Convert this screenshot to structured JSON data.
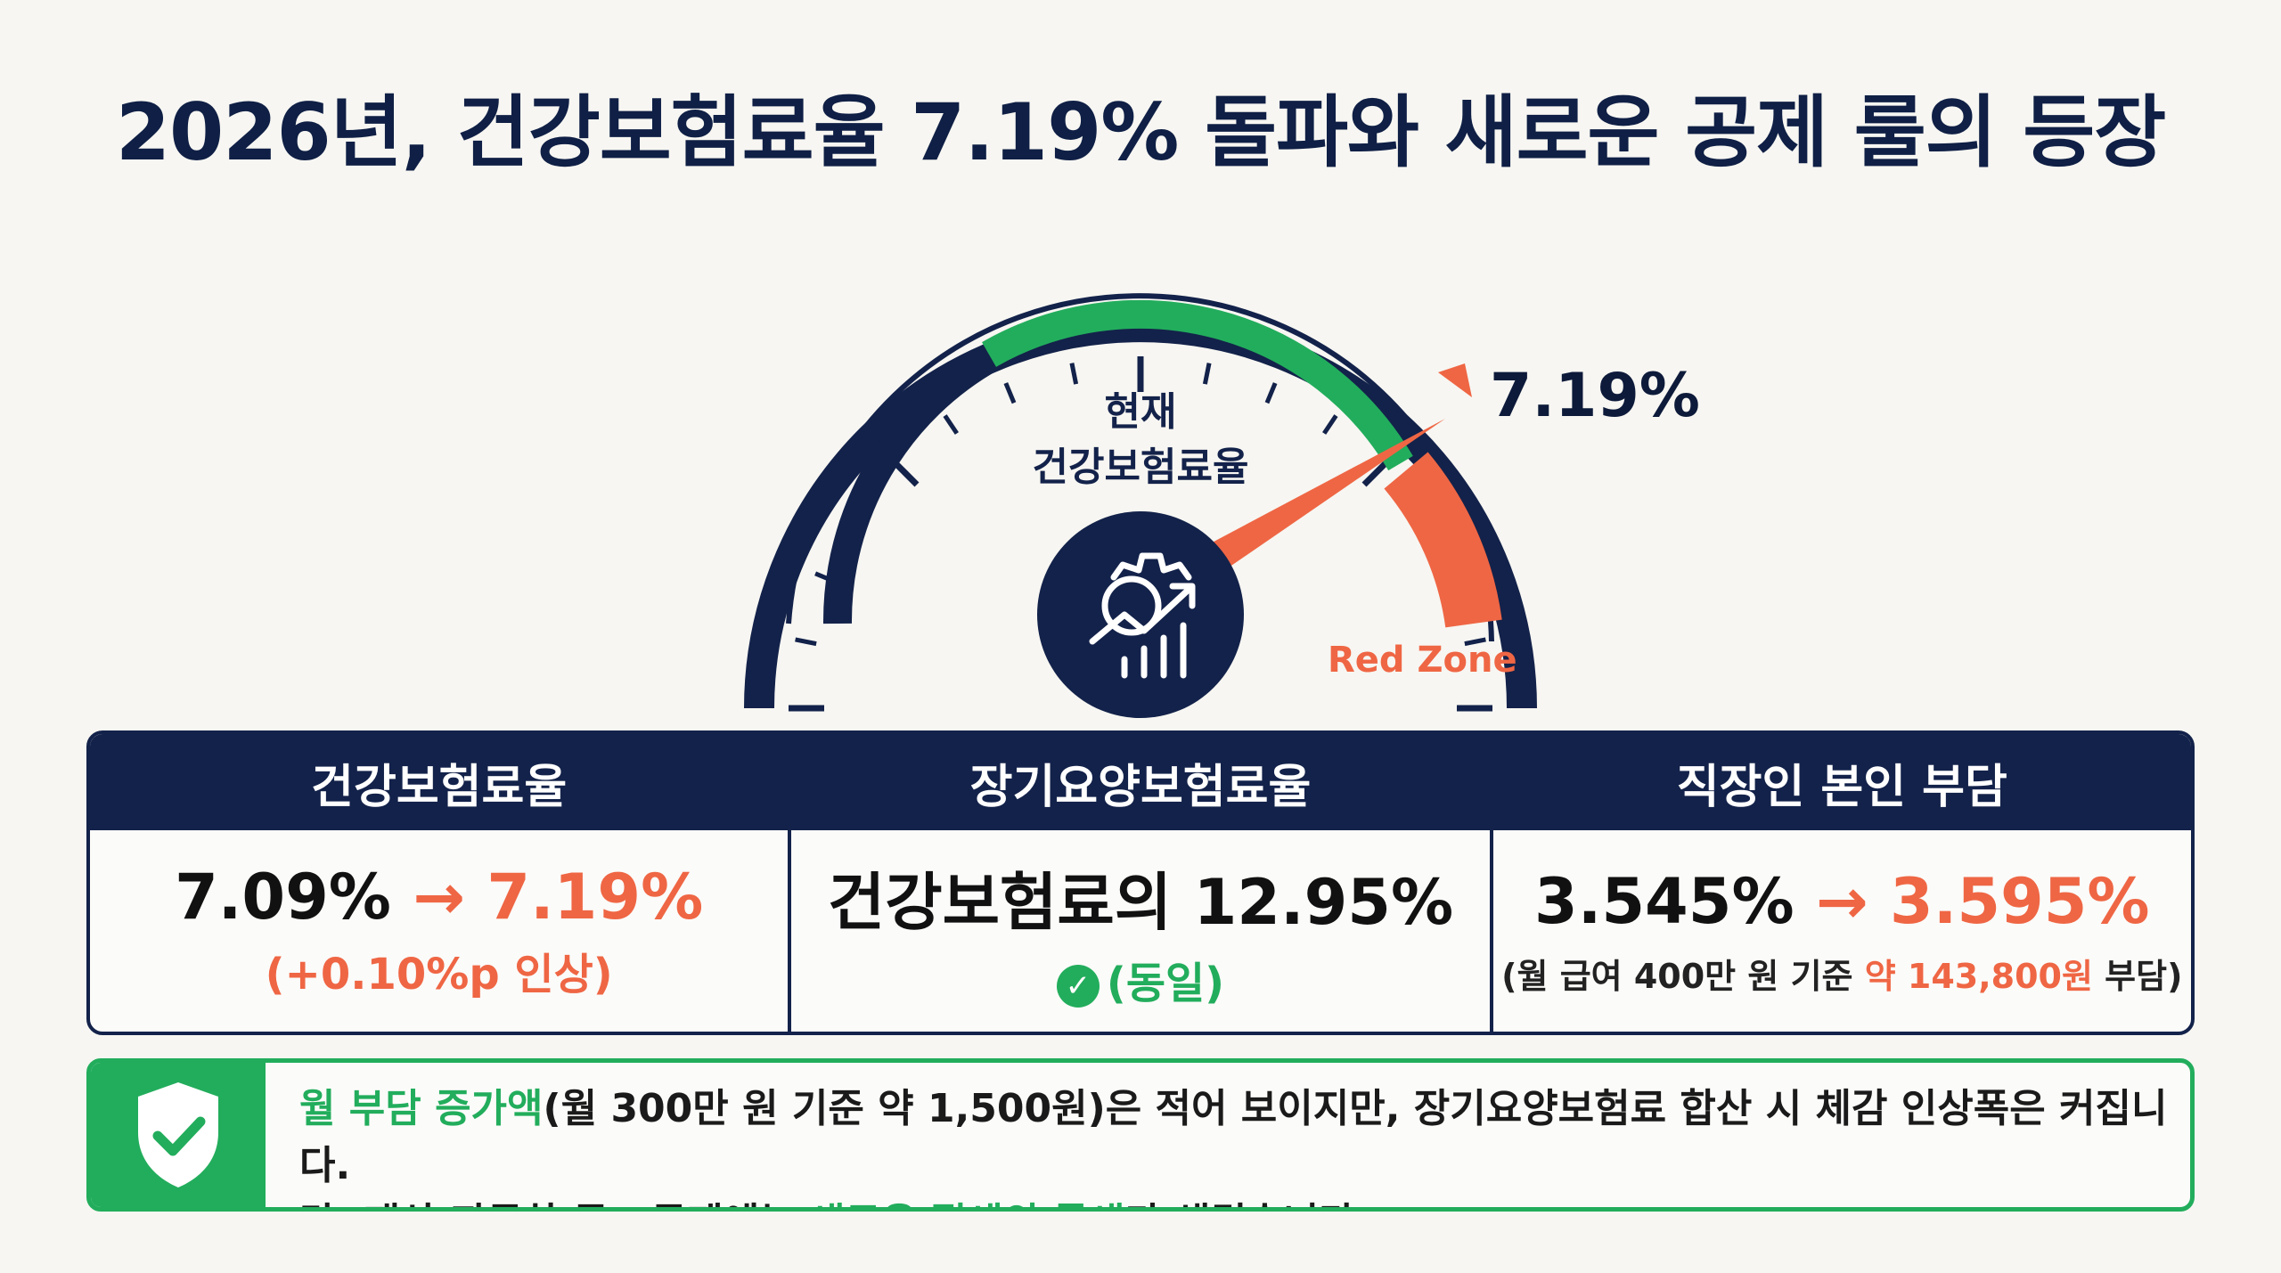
{
  "title": "2026년, 건강보험료율 7.19% 돌파와 새로운 공제 룰의 등장",
  "gauge": {
    "label_line1": "현재",
    "label_line2": "건강보험료율",
    "value": "7.19%",
    "red_zone_label": "Red Zone",
    "icon": "gear-growth-chart-icon",
    "colors": {
      "navy": "#13224a",
      "green": "#22ad5c",
      "red": "#ef6644"
    }
  },
  "table": {
    "col1": {
      "header": "건강보험료율",
      "before": "7.09%",
      "arrow": "→",
      "after": "7.19%",
      "sub": "(+0.10%p 인상)"
    },
    "col2": {
      "header": "장기요양보험료율",
      "value": "건강보험료의 12.95%",
      "sub": "(동일)",
      "icon": "check-circle-icon"
    },
    "col3": {
      "header": "직장인 본인 부담",
      "before": "3.545%",
      "arrow": "→",
      "after": "3.595%",
      "sub_prefix": "(월 급여 400만 원 기준 ",
      "sub_highlight": "약 143,800원",
      "sub_suffix": " 부담)"
    }
  },
  "note": {
    "icon": "shield-check-icon",
    "line1_highlight": "월 부담 증가액",
    "line1_rest": "(월 300만 원 기준 약 1,500원)은 적어 보이지만, 장기요양보험료 합산 시 체감 인상폭은 커집니다.",
    "line2_prefix": "단, 재산·자동차 공 · 공제에는 ",
    "line2_highlight": "새로운 절세의 틈새",
    "line2_suffix": "가 생겼습니다."
  }
}
